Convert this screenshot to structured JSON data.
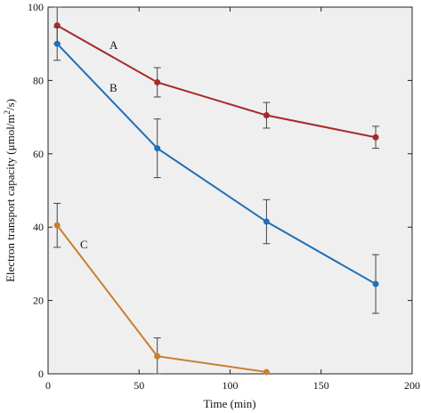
{
  "chart_data": {
    "type": "line",
    "xlabel": "Time (min)",
    "ylabel_prefix": "Electron transport capacity (μmol/m",
    "ylabel_sup": "2",
    "ylabel_suffix": "/s)",
    "xlim": [
      0,
      200
    ],
    "ylim": [
      0,
      100
    ],
    "xticks": [
      0,
      50,
      100,
      150,
      200
    ],
    "yticks": [
      0,
      20,
      40,
      60,
      80,
      100
    ],
    "grid": false,
    "series": [
      {
        "name": "A",
        "color": "#a52a2a",
        "x": [
          5,
          60,
          120,
          180
        ],
        "y": [
          95,
          79.5,
          70.5,
          64.5
        ],
        "err": [
          5,
          4,
          3.5,
          3
        ]
      },
      {
        "name": "B",
        "color": "#1f6fb8",
        "x": [
          5,
          60,
          120,
          180
        ],
        "y": [
          90,
          61.5,
          41.5,
          24.5
        ],
        "err": [
          4.5,
          8,
          6,
          8
        ]
      },
      {
        "name": "C",
        "color": "#c87f2e",
        "x": [
          5,
          60,
          120
        ],
        "y": [
          40.5,
          4.8,
          0.5
        ],
        "err": [
          6,
          5,
          0
        ]
      }
    ]
  }
}
